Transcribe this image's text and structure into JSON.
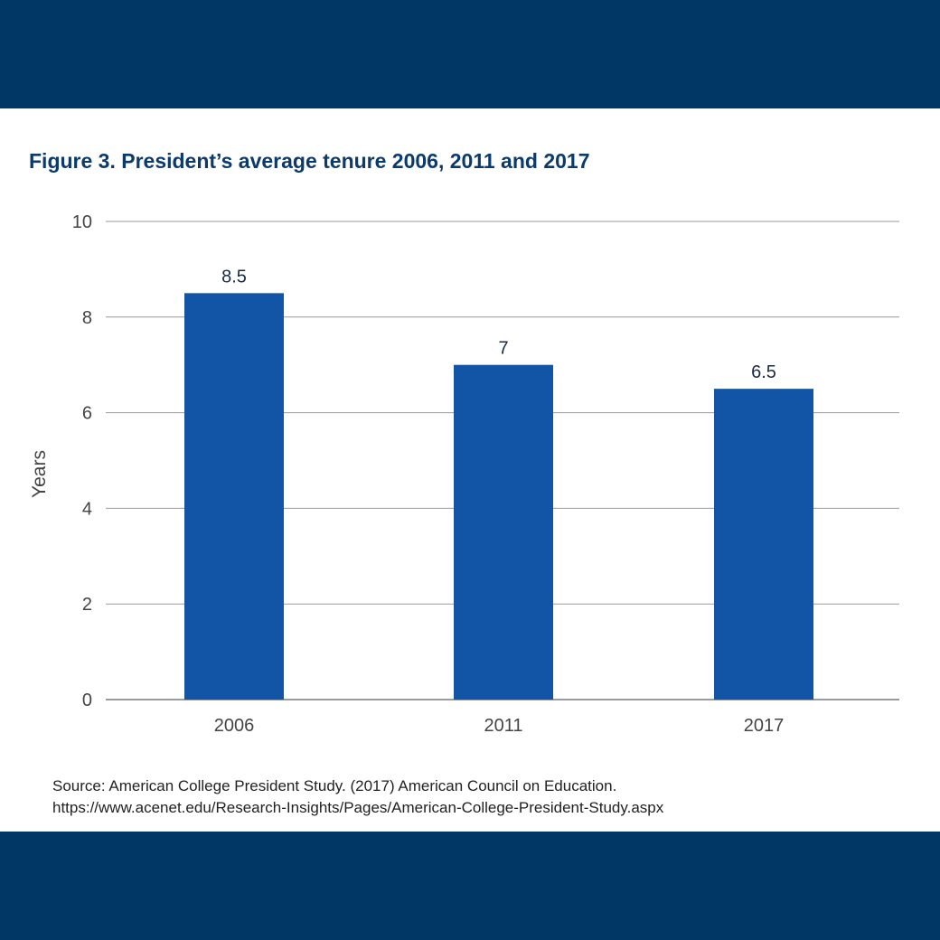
{
  "colors": {
    "band": "#003764",
    "title": "#0b3a6b",
    "bar": "#1254a6",
    "grid": "#9a9a9a",
    "axis_text": "#444444",
    "data_label": "#1a2a45"
  },
  "figure": {
    "title": "Figure 3. President’s average tenure 2006, 2011 and 2017"
  },
  "source": {
    "line1": "Source: American College President Study. (2017) American Council on Education.",
    "line2": "https://www.acenet.edu/Research-Insights/Pages/American-College-President-Study.aspx"
  },
  "chart_data": {
    "type": "bar",
    "title": "Figure 3. President’s average tenure 2006, 2011 and 2017",
    "categories": [
      "2006",
      "2011",
      "2017"
    ],
    "values": [
      8.5,
      7,
      6.5
    ],
    "data_labels": [
      "8.5",
      "7",
      "6.5"
    ],
    "xlabel": "",
    "ylabel": "Years",
    "ylim": [
      0,
      10
    ],
    "yticks": [
      0,
      2,
      4,
      6,
      8,
      10
    ],
    "grid": true,
    "legend": "none"
  }
}
